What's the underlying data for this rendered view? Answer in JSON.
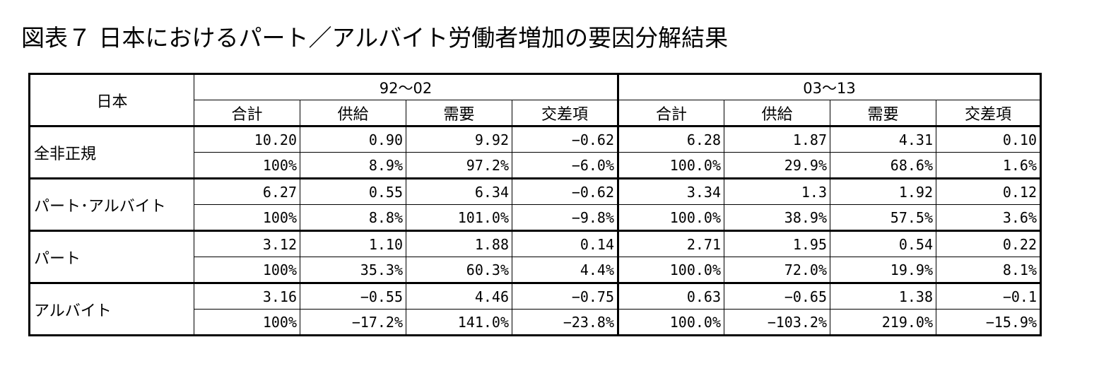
{
  "title": "図表７ 日本におけるパート／アルバイト労働者増加の要因分解結果",
  "table": {
    "corner_label": "日本",
    "periods": [
      "92～02",
      "03～13"
    ],
    "subheaders": [
      "合計",
      "供給",
      "需要",
      "交差項",
      "合計",
      "供給",
      "需要",
      "交差項"
    ],
    "groups": [
      {
        "label": "全非正規",
        "rows": [
          [
            "10.20",
            "0.90",
            "9.92",
            "−0.62",
            "6.28",
            "1.87",
            "4.31",
            "0.10"
          ],
          [
            "100%",
            "8.9%",
            "97.2%",
            "−6.0%",
            "100.0%",
            "29.9%",
            "68.6%",
            "1.6%"
          ]
        ]
      },
      {
        "label": "パート･アルバイト",
        "rows": [
          [
            "6.27",
            "0.55",
            "6.34",
            "−0.62",
            "3.34",
            "1.3",
            "1.92",
            "0.12"
          ],
          [
            "100%",
            "8.8%",
            "101.0%",
            "−9.8%",
            "100.0%",
            "38.9%",
            "57.5%",
            "3.6%"
          ]
        ]
      },
      {
        "label": "パート",
        "rows": [
          [
            "3.12",
            "1.10",
            "1.88",
            "0.14",
            "2.71",
            "1.95",
            "0.54",
            "0.22"
          ],
          [
            "100%",
            "35.3%",
            "60.3%",
            "4.4%",
            "100.0%",
            "72.0%",
            "19.9%",
            "8.1%"
          ]
        ]
      },
      {
        "label": "アルバイト",
        "rows": [
          [
            "3.16",
            "−0.55",
            "4.46",
            "−0.75",
            "0.63",
            "−0.65",
            "1.38",
            "−0.1"
          ],
          [
            "100%",
            "−17.2%",
            "141.0%",
            "−23.8%",
            "100.0%",
            "−103.2%",
            "219.0%",
            "−15.9%"
          ]
        ]
      }
    ]
  }
}
